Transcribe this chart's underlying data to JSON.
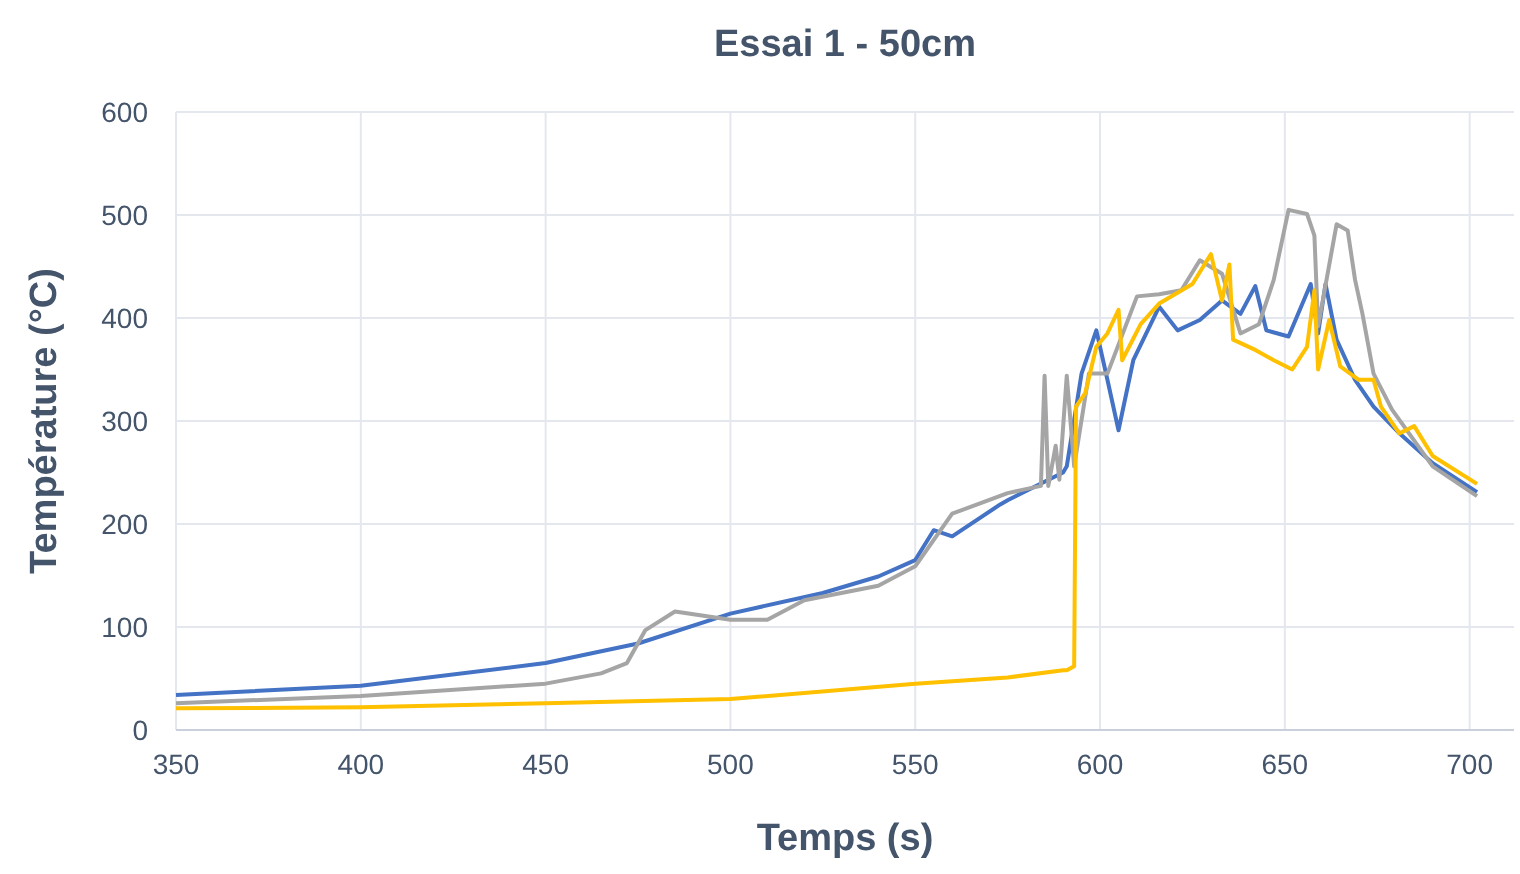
{
  "chart_data": {
    "type": "line",
    "title": "Essai 1 - 50cm",
    "xlabel": "Temps (s)",
    "ylabel": "Température (°C)",
    "xlim": [
      350,
      712
    ],
    "xticks": [
      350,
      400,
      450,
      500,
      550,
      600,
      650,
      700
    ],
    "ylim": [
      0,
      600
    ],
    "yticks": [
      0,
      100,
      200,
      300,
      400,
      500,
      600
    ],
    "grid": true,
    "marker": "none",
    "line_style": "solid",
    "series": [
      {
        "color": "#4472c4",
        "x": [
          350,
          400,
          450,
          475,
          500,
          525,
          540,
          550,
          555,
          560,
          573,
          575,
          590,
          591,
          595,
          599,
          602,
          605,
          609,
          616,
          621,
          627,
          633,
          638,
          642,
          645,
          651,
          657,
          659,
          661,
          664,
          669,
          674,
          681,
          690,
          702
        ],
        "values": [
          34,
          43,
          65,
          84,
          113,
          133,
          149,
          165,
          194,
          188,
          219,
          223,
          250,
          256,
          346,
          388,
          340,
          291,
          359,
          411,
          388,
          398,
          417,
          404,
          431,
          388,
          382,
          433,
          385,
          433,
          379,
          340,
          314,
          288,
          259,
          231
        ]
      },
      {
        "color": "#a5a5a5",
        "x": [
          350,
          400,
          450,
          465,
          472,
          477,
          485,
          500,
          510,
          520,
          540,
          550,
          560,
          575,
          584,
          585,
          586,
          588,
          589,
          591,
          593,
          597,
          602,
          610,
          616,
          622,
          627,
          633,
          638,
          643,
          647,
          651,
          656,
          658,
          659,
          664,
          667,
          669,
          671,
          674,
          679,
          690,
          702
        ],
        "values": [
          26,
          33,
          45,
          55,
          65,
          97,
          115,
          107,
          107,
          126,
          140,
          159,
          210,
          230,
          237,
          344,
          237,
          276,
          243,
          344,
          256,
          346,
          346,
          421,
          423,
          427,
          456,
          443,
          385,
          394,
          437,
          505,
          501,
          480,
          392,
          491,
          485,
          437,
          404,
          346,
          311,
          256,
          227
        ]
      },
      {
        "color": "#ffc000",
        "x": [
          350,
          400,
          450,
          500,
          550,
          575,
          590,
          591,
          593,
          593.5,
          596,
          599,
          602,
          605,
          606,
          611,
          616,
          625,
          630,
          633,
          635,
          636,
          642,
          647,
          652,
          656,
          658,
          659,
          662,
          665,
          670,
          674,
          676,
          681,
          685,
          690,
          702
        ],
        "values": [
          21,
          22,
          26,
          30,
          45,
          51,
          58,
          58,
          62,
          314,
          327,
          372,
          385,
          408,
          359,
          394,
          414,
          433,
          462,
          417,
          452,
          379,
          369,
          359,
          350,
          372,
          427,
          350,
          398,
          353,
          340,
          340,
          314,
          288,
          295,
          266,
          239
        ]
      }
    ]
  }
}
